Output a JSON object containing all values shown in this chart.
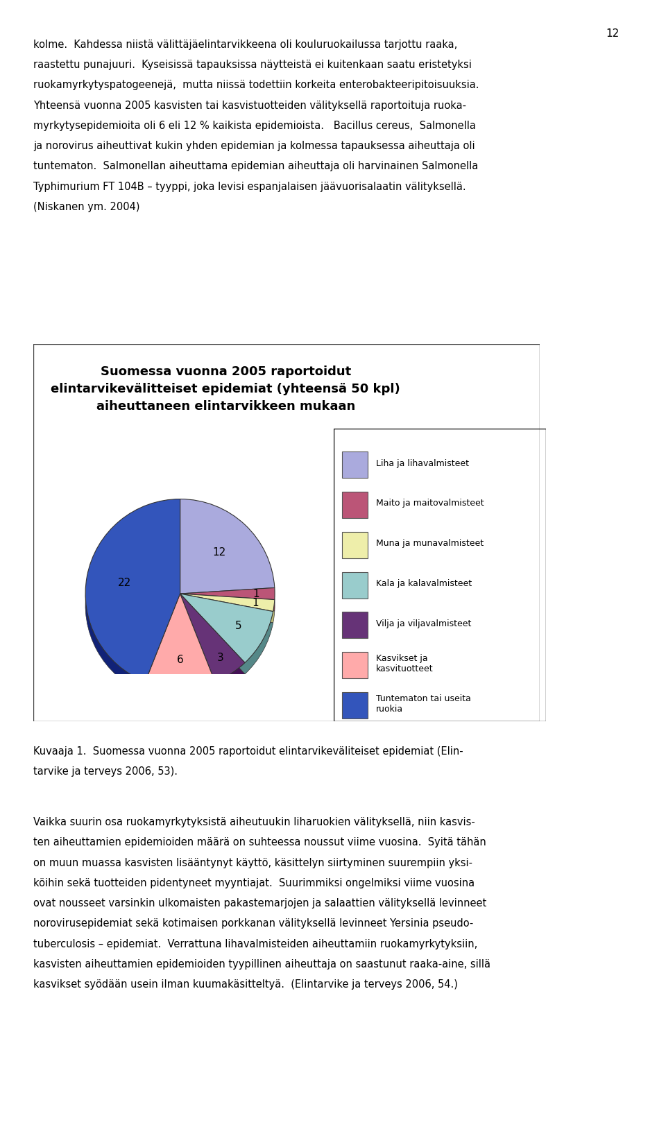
{
  "title_line1": "Suomessa vuonna 2005 raportoidut",
  "title_line2": "elintarvikevälitteiset epidemiat (yhteensä 50 kpl)",
  "title_line3": "aiheuttaneen elintarvikkeen mukaan",
  "labels": [
    "Liha ja lihavalmisteet",
    "Maito ja maitovalmisteet",
    "Muna ja munavalmisteet",
    "Kala ja kalavalmisteet",
    "Vilja ja viljavalmisteet",
    "Kasvikset ja\nkasvituotteet",
    "Tuntematon tai useita\nruokia"
  ],
  "values": [
    12,
    1,
    1,
    5,
    3,
    6,
    22
  ],
  "colors_top": [
    "#aaaadd",
    "#bb5577",
    "#eeeeaa",
    "#99cccc",
    "#663377",
    "#ffaaaa",
    "#3355bb"
  ],
  "colors_side": [
    "#7777aa",
    "#883344",
    "#bbbb77",
    "#558888",
    "#441155",
    "#cc7777",
    "#112277"
  ],
  "background_color": "#ffffff",
  "page_background": "#ffffff",
  "title_fontsize": 13,
  "legend_fontsize": 9,
  "label_fontsize": 11,
  "startangle": 90,
  "page_text": [
    "kolme.  Kahdessa niistä välittäjäelintarvikkeena oli kouluruokailussa tarjottu raaka,",
    "raastettu punajuuri.  Kyseisissä tapauksissa näytteistä ei kuitenkaan saatu eristetyksi",
    "ruokamyrkytyspatogeenejä,  mutta niissä todettiin korkeita enterobakteeripitoisuuksia.",
    "Yhteensä vuonna 2005 kasvisten tai kasvistuotteiden välityksellä raportoituja ruoka-",
    "myrkytysepidemioita oli 6 eli 12 % kaikista epidemioista.  Bacillus cereus, Salmonella",
    "ja norovirus aiheuttivat kukin yhden epidemian ja kolmessa tapauksessa aiheuttaja oli",
    "tuntematon.  Salmonellan aiheuttama epidemian aiheuttaja oli harvinainen Salmonella",
    "Typhimurium  FT  104B  –  tyyppi,  joka  levisi  espanjalaisen  jäävuorisalaatin välityksellä.",
    "(Niskanen ym. 2004)"
  ],
  "bottom_text": [
    "Kuvaaja 1.  Suomessa vuonna 2005 raportoidut elintarvikevaliteiset epidemiat (Elin-",
    "tarvike ja terveys 2006, 53).",
    "",
    "Vaikka suurin osa ruokamyrkytyksistä aiheutuukin liharuokien välityksellä, niin kasvis-",
    "ten aiheuttamien epidemioiden määrä on suhteessa noussut viime vuosina.  Syitä tähän",
    "on muun muassa kasvisten lisääntynyt käyttö, käsittelyn siirtyminen suurempiin yksi-",
    "köihin sekä tuotteiden pidentyneet myyntiajat.  Suurimmiksi ongelmiksi viime vuosina",
    "ovat nousseet varsinkin ulkomaisten pakastemarjojen ja salaattien välityksellä levinneet",
    "norovirusepidemiat sekä kotimaisen porkkanan välityksellä levinneet Yersinia pseudo-",
    "tuberculosis  – epidemiat.  Verrattuna lihavalmisteiden aiheuttamiin ruokamyrkytyksiin,",
    "kasvisten aiheuttamien epidemioiden tyypillinen aiheuttaja on saastunut raaka-aine, sillä",
    "kasvikset syödään usein ilman kuumakäsitteltyä.  (Elintarvike ja terveys 2006, 54.)"
  ]
}
